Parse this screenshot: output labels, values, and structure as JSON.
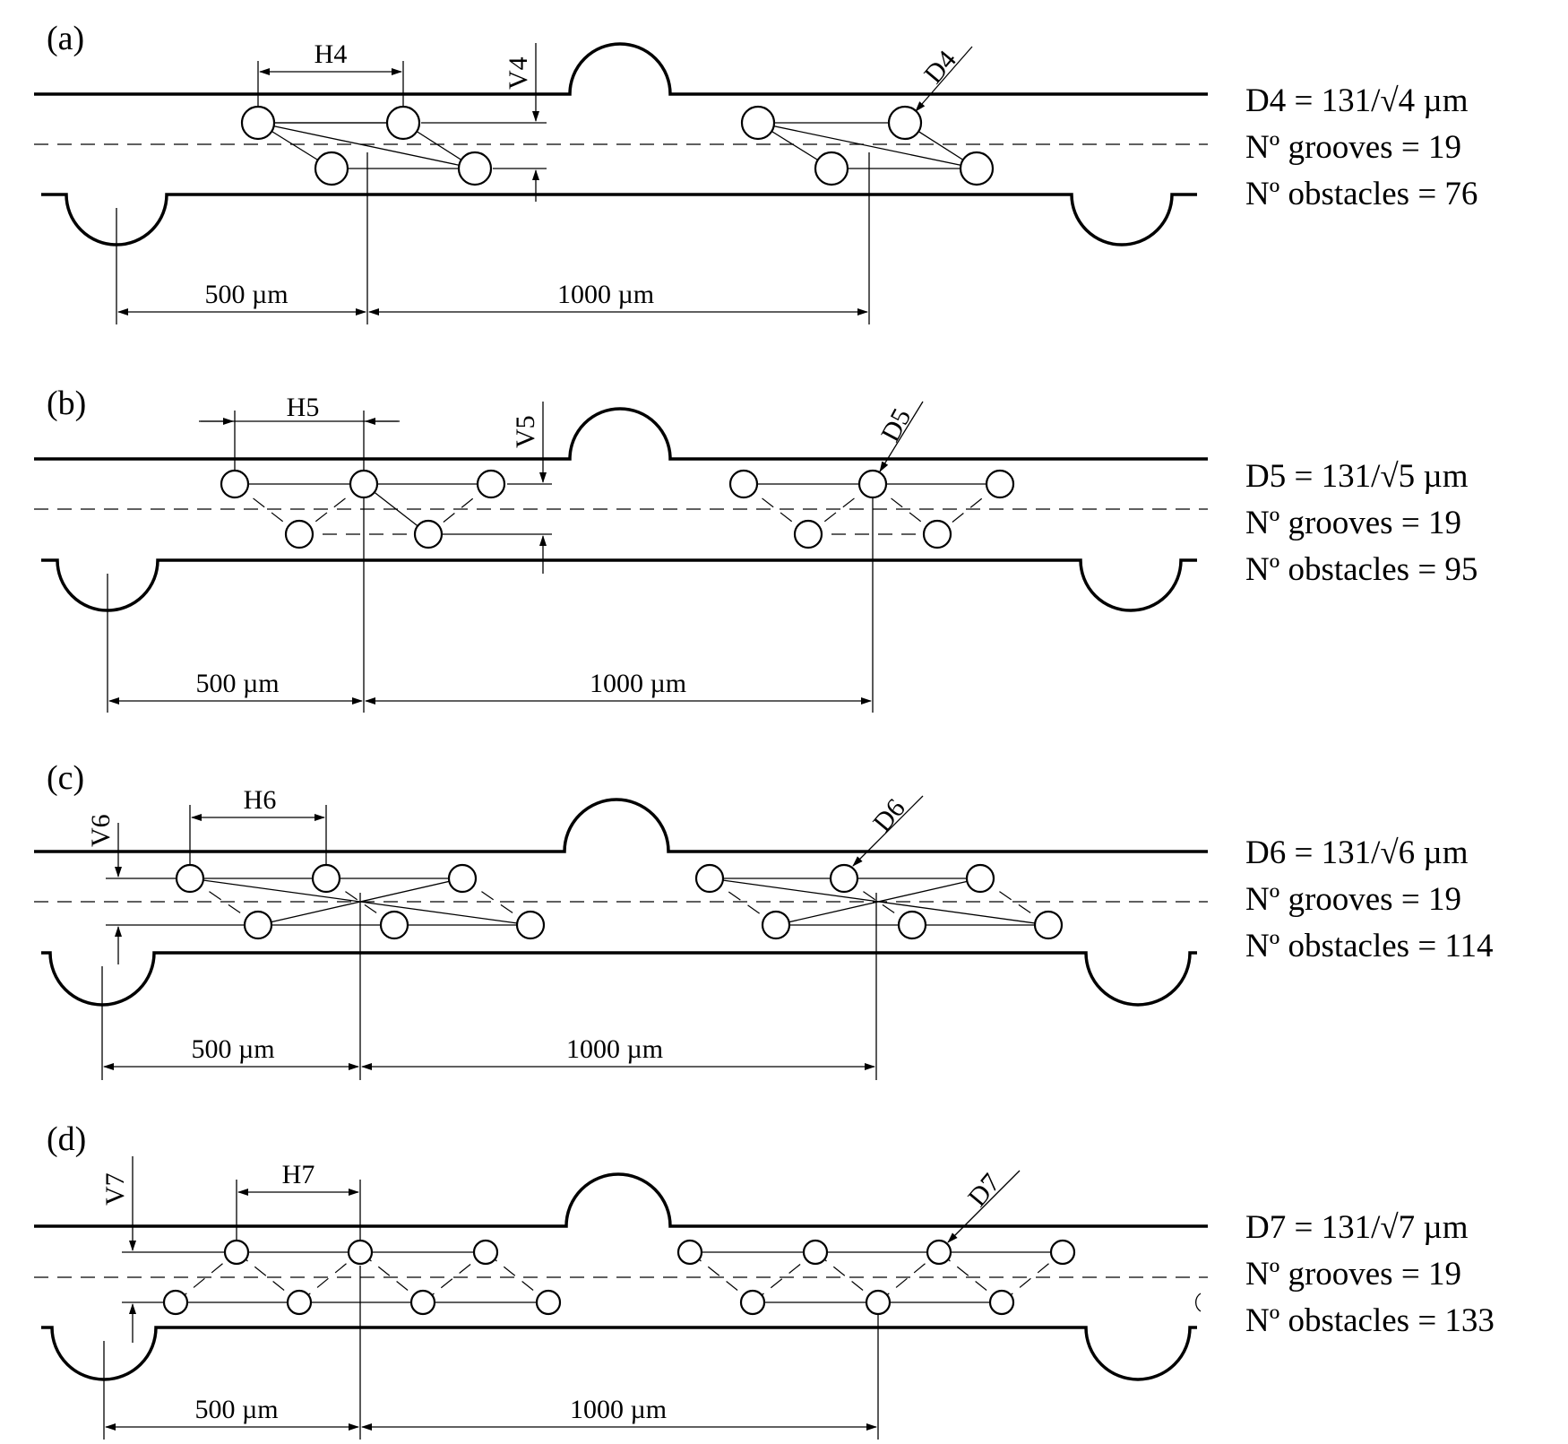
{
  "panels": [
    {
      "label": "(a)",
      "h": "H4",
      "v": "V4",
      "d": "D4",
      "dim_left": "500 µm",
      "dim_right": "1000 µm",
      "info": [
        "D4 = 131/√4 µm",
        "Nº grooves = 19",
        "Nº obstacles = 76"
      ]
    },
    {
      "label": "(b)",
      "h": "H5",
      "v": "V5",
      "d": "D5",
      "dim_left": "500 µm",
      "dim_right": "1000 µm",
      "info": [
        "D5 = 131/√5 µm",
        "Nº grooves = 19",
        "Nº obstacles = 95"
      ]
    },
    {
      "label": "(c)",
      "h": "H6",
      "v": "V6",
      "d": "D6",
      "dim_left": "500 µm",
      "dim_right": "1000 µm",
      "info": [
        "D6 = 131/√6 µm",
        "Nº grooves = 19",
        "Nº obstacles = 114"
      ]
    },
    {
      "label": "(d)",
      "h": "H7",
      "v": "V7",
      "d": "D7",
      "dim_left": "500 µm",
      "dim_right": "1000 µm",
      "info": [
        "D7 = 131/√7 µm",
        "Nº grooves = 19",
        "Nº obstacles = 133"
      ]
    }
  ]
}
